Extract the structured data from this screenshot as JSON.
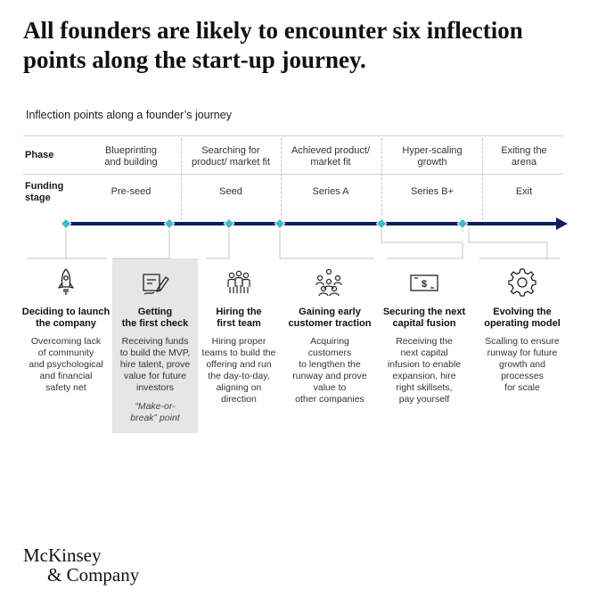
{
  "headline": "All founders are likely to encounter six inflection points along the start-up journey.",
  "subtitle": "Inflection points along a founder’s journey",
  "row_labels": {
    "phase": "Phase",
    "funding_line1": "Funding",
    "funding_line2": "stage"
  },
  "phases": [
    {
      "line1": "Blueprinting",
      "line2": "and building"
    },
    {
      "line1": "Searching for",
      "line2": "product/ market fit"
    },
    {
      "line1": "Achieved product/",
      "line2": "market fit"
    },
    {
      "line1": "Hyper-scaling",
      "line2": "growth"
    },
    {
      "line1": "Exiting the",
      "line2": "arena"
    }
  ],
  "funding_stages": [
    "Pre-seed",
    "Seed",
    "Series A",
    "Series B+",
    "Exit"
  ],
  "points": [
    {
      "icon": "rocket-icon",
      "title": [
        "Deciding to launch",
        "the company"
      ],
      "desc": [
        "Overcoming lack",
        "of community",
        "and psychological",
        "and financial",
        "safety net"
      ]
    },
    {
      "icon": "check-signing-icon",
      "title": [
        "Getting",
        "the first check"
      ],
      "desc": [
        "Receiving funds",
        "to build the MVP,",
        "hire talent, prove",
        "value for future",
        "investors"
      ],
      "note": [
        "“Make-or-",
        "break” point"
      ]
    },
    {
      "icon": "team-icon",
      "title": [
        "Hiring the",
        "first team"
      ],
      "desc": [
        "Hiring proper",
        "teams to build the",
        "offering and run",
        "the day-to-day,",
        "aligning on",
        "direction"
      ]
    },
    {
      "icon": "customers-icon",
      "title": [
        "Gaining early",
        "customer traction"
      ],
      "desc": [
        "Acquiring",
        "customers",
        "to lengthen the",
        "runway and prove",
        "value to",
        "other companies"
      ]
    },
    {
      "icon": "dollar-bill-icon",
      "title": [
        "Securing the next",
        "capital fusion"
      ],
      "desc": [
        "Receiving the",
        "next capital",
        "infusion to enable",
        "expansion, hire",
        "right skillsets,",
        "pay yourself"
      ]
    },
    {
      "icon": "gear-icon",
      "title": [
        "Evolving the",
        "operating model"
      ],
      "desc": [
        "Scalling to ensure",
        "runway for future",
        "growth and",
        "processes",
        "for scale"
      ]
    }
  ],
  "logo": {
    "line1": "McKinsey",
    "line2": "& Company"
  },
  "colors": {
    "timeline": "#0b1f5c",
    "marker": "#3bb8d3",
    "highlight": "#e6e6e6"
  }
}
